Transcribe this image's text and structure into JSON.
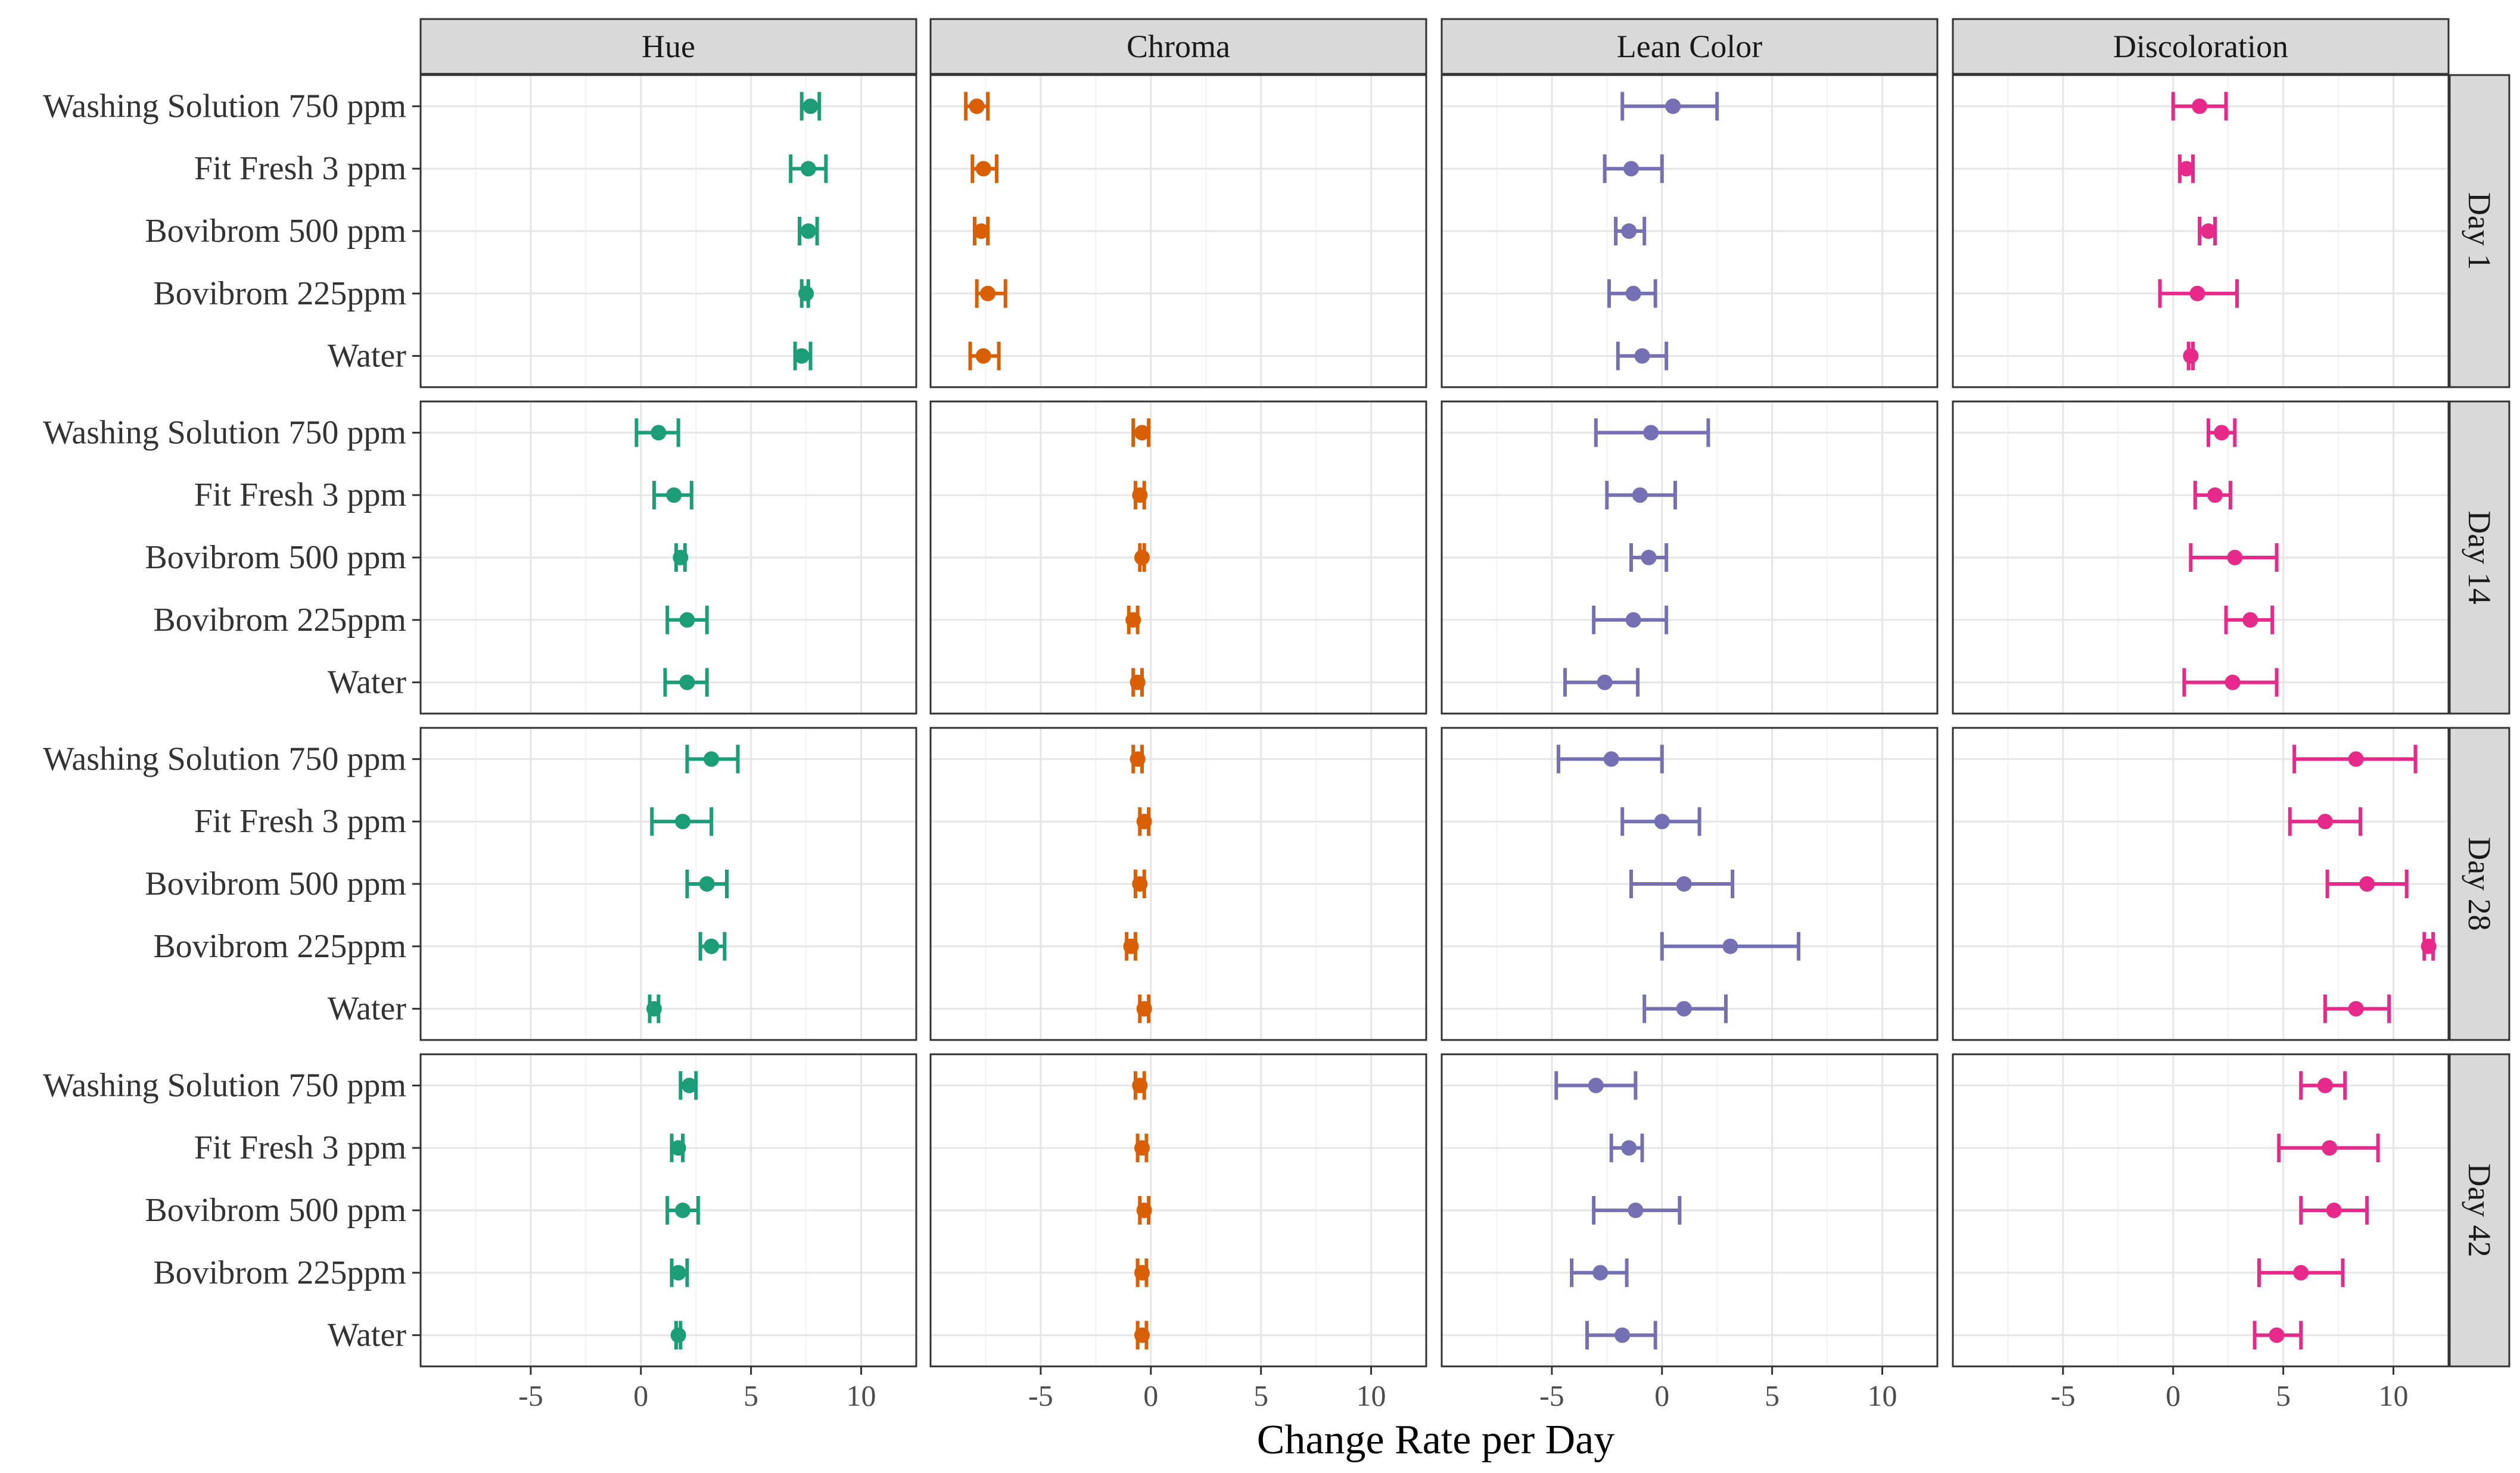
{
  "chart_data": {
    "type": "errorbar",
    "xlabel": "Change Rate per Day",
    "ylabel": "",
    "xlim": [
      -10,
      12.5
    ],
    "x_ticks": [
      -5,
      0,
      5,
      10
    ],
    "x_tick_labels": [
      "-5",
      "0",
      "5",
      "10"
    ],
    "grid": true,
    "columns": [
      {
        "label": "Hue",
        "color": "#1B9E77"
      },
      {
        "label": "Chroma",
        "color": "#D95F02"
      },
      {
        "label": "Lean Color",
        "color": "#7570B3"
      },
      {
        "label": "Discoloration",
        "color": "#E7298A"
      }
    ],
    "rows": [
      "Day 1",
      "Day 14",
      "Day 28",
      "Day 42"
    ],
    "treatments": [
      "Washing Solution 750 ppm",
      "Fit Fresh 3 ppm",
      "Bovibrom 500 ppm",
      "Bovibrom 225ppm",
      "Water"
    ],
    "panels": [
      {
        "row": "Day 1",
        "column": "Hue",
        "points": [
          {
            "treatment": "Washing Solution 750 ppm",
            "mean": 7.7,
            "low": 7.3,
            "high": 8.1
          },
          {
            "treatment": "Fit Fresh 3 ppm",
            "mean": 7.6,
            "low": 6.8,
            "high": 8.4
          },
          {
            "treatment": "Bovibrom 500 ppm",
            "mean": 7.6,
            "low": 7.2,
            "high": 8.0
          },
          {
            "treatment": "Bovibrom 225ppm",
            "mean": 7.5,
            "low": 7.3,
            "high": 7.6
          },
          {
            "treatment": "Water",
            "mean": 7.3,
            "low": 7.0,
            "high": 7.7
          }
        ]
      },
      {
        "row": "Day 1",
        "column": "Chroma",
        "points": [
          {
            "treatment": "Washing Solution 750 ppm",
            "mean": -7.9,
            "low": -8.4,
            "high": -7.4
          },
          {
            "treatment": "Fit Fresh 3 ppm",
            "mean": -7.6,
            "low": -8.1,
            "high": -7.0
          },
          {
            "treatment": "Bovibrom 500 ppm",
            "mean": -7.7,
            "low": -8.0,
            "high": -7.4
          },
          {
            "treatment": "Bovibrom 225ppm",
            "mean": -7.4,
            "low": -7.9,
            "high": -6.6
          },
          {
            "treatment": "Water",
            "mean": -7.6,
            "low": -8.2,
            "high": -6.9
          }
        ]
      },
      {
        "row": "Day 1",
        "column": "Lean Color",
        "points": [
          {
            "treatment": "Washing Solution 750 ppm",
            "mean": 0.5,
            "low": -1.8,
            "high": 2.5
          },
          {
            "treatment": "Fit Fresh 3 ppm",
            "mean": -1.4,
            "low": -2.6,
            "high": 0.0
          },
          {
            "treatment": "Bovibrom 500 ppm",
            "mean": -1.5,
            "low": -2.1,
            "high": -0.8
          },
          {
            "treatment": "Bovibrom 225ppm",
            "mean": -1.3,
            "low": -2.4,
            "high": -0.3
          },
          {
            "treatment": "Water",
            "mean": -0.9,
            "low": -2.0,
            "high": 0.2
          }
        ]
      },
      {
        "row": "Day 1",
        "column": "Discoloration",
        "points": [
          {
            "treatment": "Washing Solution 750 ppm",
            "mean": 1.2,
            "low": 0.0,
            "high": 2.4
          },
          {
            "treatment": "Fit Fresh 3 ppm",
            "mean": 0.6,
            "low": 0.3,
            "high": 0.9
          },
          {
            "treatment": "Bovibrom 500 ppm",
            "mean": 1.6,
            "low": 1.2,
            "high": 1.9
          },
          {
            "treatment": "Bovibrom 225ppm",
            "mean": 1.1,
            "low": -0.6,
            "high": 2.9
          },
          {
            "treatment": "Water",
            "mean": 0.8,
            "low": 0.7,
            "high": 0.9
          }
        ]
      },
      {
        "row": "Day 14",
        "column": "Hue",
        "points": [
          {
            "treatment": "Washing Solution 750 ppm",
            "mean": 0.8,
            "low": -0.2,
            "high": 1.7
          },
          {
            "treatment": "Fit Fresh 3 ppm",
            "mean": 1.5,
            "low": 0.6,
            "high": 2.3
          },
          {
            "treatment": "Bovibrom 500 ppm",
            "mean": 1.8,
            "low": 1.6,
            "high": 2.0
          },
          {
            "treatment": "Bovibrom 225ppm",
            "mean": 2.1,
            "low": 1.2,
            "high": 3.0
          },
          {
            "treatment": "Water",
            "mean": 2.1,
            "low": 1.1,
            "high": 3.0
          }
        ]
      },
      {
        "row": "Day 14",
        "column": "Chroma",
        "points": [
          {
            "treatment": "Washing Solution 750 ppm",
            "mean": -0.4,
            "low": -0.8,
            "high": -0.1
          },
          {
            "treatment": "Fit Fresh 3 ppm",
            "mean": -0.5,
            "low": -0.7,
            "high": -0.3
          },
          {
            "treatment": "Bovibrom 500 ppm",
            "mean": -0.4,
            "low": -0.5,
            "high": -0.3
          },
          {
            "treatment": "Bovibrom 225ppm",
            "mean": -0.8,
            "low": -1.0,
            "high": -0.6
          },
          {
            "treatment": "Water",
            "mean": -0.6,
            "low": -0.8,
            "high": -0.4
          }
        ]
      },
      {
        "row": "Day 14",
        "column": "Lean Color",
        "points": [
          {
            "treatment": "Washing Solution 750 ppm",
            "mean": -0.5,
            "low": -3.0,
            "high": 2.1
          },
          {
            "treatment": "Fit Fresh 3 ppm",
            "mean": -1.0,
            "low": -2.5,
            "high": 0.6
          },
          {
            "treatment": "Bovibrom 500 ppm",
            "mean": -0.6,
            "low": -1.4,
            "high": 0.2
          },
          {
            "treatment": "Bovibrom 225ppm",
            "mean": -1.3,
            "low": -3.1,
            "high": 0.2
          },
          {
            "treatment": "Water",
            "mean": -2.6,
            "low": -4.4,
            "high": -1.1
          }
        ]
      },
      {
        "row": "Day 14",
        "column": "Discoloration",
        "points": [
          {
            "treatment": "Washing Solution 750 ppm",
            "mean": 2.2,
            "low": 1.6,
            "high": 2.8
          },
          {
            "treatment": "Fit Fresh 3 ppm",
            "mean": 1.9,
            "low": 1.0,
            "high": 2.6
          },
          {
            "treatment": "Bovibrom 500 ppm",
            "mean": 2.8,
            "low": 0.8,
            "high": 4.7
          },
          {
            "treatment": "Bovibrom 225ppm",
            "mean": 3.5,
            "low": 2.4,
            "high": 4.5
          },
          {
            "treatment": "Water",
            "mean": 2.7,
            "low": 0.5,
            "high": 4.7
          }
        ]
      },
      {
        "row": "Day 28",
        "column": "Hue",
        "points": [
          {
            "treatment": "Washing Solution 750 ppm",
            "mean": 3.2,
            "low": 2.1,
            "high": 4.4
          },
          {
            "treatment": "Fit Fresh 3 ppm",
            "mean": 1.9,
            "low": 0.5,
            "high": 3.2
          },
          {
            "treatment": "Bovibrom 500 ppm",
            "mean": 3.0,
            "low": 2.1,
            "high": 3.9
          },
          {
            "treatment": "Bovibrom 225ppm",
            "mean": 3.2,
            "low": 2.7,
            "high": 3.8
          },
          {
            "treatment": "Water",
            "mean": 0.6,
            "low": 0.4,
            "high": 0.8
          }
        ]
      },
      {
        "row": "Day 28",
        "column": "Chroma",
        "points": [
          {
            "treatment": "Washing Solution 750 ppm",
            "mean": -0.6,
            "low": -0.8,
            "high": -0.4
          },
          {
            "treatment": "Fit Fresh 3 ppm",
            "mean": -0.3,
            "low": -0.5,
            "high": -0.1
          },
          {
            "treatment": "Bovibrom 500 ppm",
            "mean": -0.5,
            "low": -0.7,
            "high": -0.3
          },
          {
            "treatment": "Bovibrom 225ppm",
            "mean": -0.9,
            "low": -1.1,
            "high": -0.7
          },
          {
            "treatment": "Water",
            "mean": -0.3,
            "low": -0.5,
            "high": -0.1
          }
        ]
      },
      {
        "row": "Day 28",
        "column": "Lean Color",
        "points": [
          {
            "treatment": "Washing Solution 750 ppm",
            "mean": -2.3,
            "low": -4.7,
            "high": 0.0
          },
          {
            "treatment": "Fit Fresh 3 ppm",
            "mean": 0.0,
            "low": -1.8,
            "high": 1.7
          },
          {
            "treatment": "Bovibrom 500 ppm",
            "mean": 1.0,
            "low": -1.4,
            "high": 3.2
          },
          {
            "treatment": "Bovibrom 225ppm",
            "mean": 3.1,
            "low": 0.0,
            "high": 6.2
          },
          {
            "treatment": "Water",
            "mean": 1.0,
            "low": -0.8,
            "high": 2.9
          }
        ]
      },
      {
        "row": "Day 28",
        "column": "Discoloration",
        "points": [
          {
            "treatment": "Washing Solution 750 ppm",
            "mean": 8.3,
            "low": 5.5,
            "high": 11.0
          },
          {
            "treatment": "Fit Fresh 3 ppm",
            "mean": 6.9,
            "low": 5.3,
            "high": 8.5
          },
          {
            "treatment": "Bovibrom 500 ppm",
            "mean": 8.8,
            "low": 7.0,
            "high": 10.6
          },
          {
            "treatment": "Bovibrom 225ppm",
            "mean": 11.6,
            "low": 11.4,
            "high": 11.8
          },
          {
            "treatment": "Water",
            "mean": 8.3,
            "low": 6.9,
            "high": 9.8
          }
        ]
      },
      {
        "row": "Day 42",
        "column": "Hue",
        "points": [
          {
            "treatment": "Washing Solution 750 ppm",
            "mean": 2.2,
            "low": 1.8,
            "high": 2.5
          },
          {
            "treatment": "Fit Fresh 3 ppm",
            "mean": 1.7,
            "low": 1.4,
            "high": 1.9
          },
          {
            "treatment": "Bovibrom 500 ppm",
            "mean": 1.9,
            "low": 1.2,
            "high": 2.6
          },
          {
            "treatment": "Bovibrom 225ppm",
            "mean": 1.7,
            "low": 1.4,
            "high": 2.1
          },
          {
            "treatment": "Water",
            "mean": 1.7,
            "low": 1.6,
            "high": 1.8
          }
        ]
      },
      {
        "row": "Day 42",
        "column": "Chroma",
        "points": [
          {
            "treatment": "Washing Solution 750 ppm",
            "mean": -0.5,
            "low": -0.7,
            "high": -0.3
          },
          {
            "treatment": "Fit Fresh 3 ppm",
            "mean": -0.4,
            "low": -0.6,
            "high": -0.2
          },
          {
            "treatment": "Bovibrom 500 ppm",
            "mean": -0.3,
            "low": -0.5,
            "high": -0.1
          },
          {
            "treatment": "Bovibrom 225ppm",
            "mean": -0.4,
            "low": -0.6,
            "high": -0.2
          },
          {
            "treatment": "Water",
            "mean": -0.4,
            "low": -0.6,
            "high": -0.2
          }
        ]
      },
      {
        "row": "Day 42",
        "column": "Lean Color",
        "points": [
          {
            "treatment": "Washing Solution 750 ppm",
            "mean": -3.0,
            "low": -4.8,
            "high": -1.2
          },
          {
            "treatment": "Fit Fresh 3 ppm",
            "mean": -1.5,
            "low": -2.3,
            "high": -0.9
          },
          {
            "treatment": "Bovibrom 500 ppm",
            "mean": -1.2,
            "low": -3.1,
            "high": 0.8
          },
          {
            "treatment": "Bovibrom 225ppm",
            "mean": -2.8,
            "low": -4.1,
            "high": -1.6
          },
          {
            "treatment": "Water",
            "mean": -1.8,
            "low": -3.4,
            "high": -0.3
          }
        ]
      },
      {
        "row": "Day 42",
        "column": "Discoloration",
        "points": [
          {
            "treatment": "Washing Solution 750 ppm",
            "mean": 6.9,
            "low": 5.8,
            "high": 7.8
          },
          {
            "treatment": "Fit Fresh 3 ppm",
            "mean": 7.1,
            "low": 4.8,
            "high": 9.3
          },
          {
            "treatment": "Bovibrom 500 ppm",
            "mean": 7.3,
            "low": 5.8,
            "high": 8.8
          },
          {
            "treatment": "Bovibrom 225ppm",
            "mean": 5.8,
            "low": 3.9,
            "high": 7.7
          },
          {
            "treatment": "Water",
            "mean": 4.7,
            "low": 3.7,
            "high": 5.8
          }
        ]
      }
    ]
  }
}
